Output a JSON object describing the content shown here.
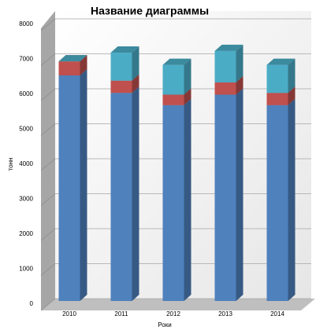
{
  "chart_data": {
    "type": "bar3d_stacked",
    "title": "Название диаграммы",
    "x_label": "Роки",
    "y_label": "тонн",
    "categories": [
      "2010",
      "2011",
      "2012",
      "2013",
      "2014"
    ],
    "series": [
      {
        "color": "#4f81bd",
        "values": [
          6450,
          5950,
          5600,
          5900,
          5600
        ]
      },
      {
        "color": "#c0504d",
        "values": [
          400,
          350,
          300,
          350,
          350
        ]
      },
      {
        "color": "#4bacc6",
        "values": [
          0,
          800,
          850,
          900,
          800
        ]
      }
    ],
    "ylim": [
      0,
      8000
    ],
    "yticks": [
      0,
      1000,
      2000,
      3000,
      4000,
      5000,
      6000,
      7000,
      8000
    ],
    "grid": true
  }
}
